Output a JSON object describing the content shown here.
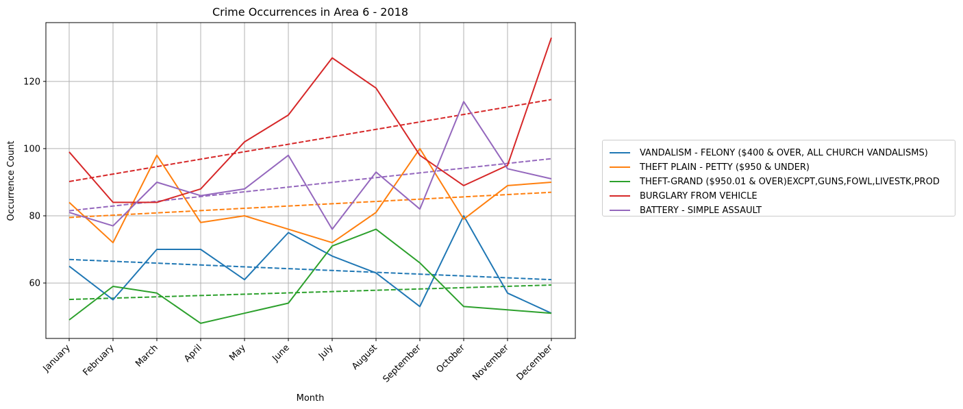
{
  "chart_data": {
    "type": "line",
    "title": "Crime Occurrences in Area 6 - 2018",
    "xlabel": "Month",
    "ylabel": "Occurrence Count",
    "categories": [
      "January",
      "February",
      "March",
      "April",
      "May",
      "June",
      "July",
      "August",
      "September",
      "October",
      "November",
      "December"
    ],
    "ylim": [
      43.5,
      137.5
    ],
    "yticks": [
      60,
      80,
      100,
      120
    ],
    "grid": true,
    "legend_position": "outside-right",
    "series": [
      {
        "name": "VANDALISM - FELONY ($400 & OVER, ALL CHURCH VANDALISMS)",
        "color": "#1f77b4",
        "values": [
          65,
          55,
          70,
          70,
          61,
          75,
          68,
          63,
          53,
          80,
          57,
          51
        ],
        "trend": [
          67.0,
          61.0
        ]
      },
      {
        "name": "THEFT PLAIN - PETTY ($950 & UNDER)",
        "color": "#ff7f0e",
        "values": [
          84,
          72,
          98,
          78,
          80,
          76,
          72,
          81,
          100,
          79,
          89,
          90
        ],
        "trend": [
          79.5,
          87.0
        ]
      },
      {
        "name": "THEFT-GRAND ($950.01 & OVER)EXCPT,GUNS,FOWL,LIVESTK,PROD",
        "color": "#2ca02c",
        "values": [
          49,
          59,
          57,
          48,
          51,
          54,
          71,
          76,
          66,
          53,
          52,
          51
        ],
        "trend": [
          55.1,
          59.4
        ]
      },
      {
        "name": "BURGLARY FROM VEHICLE",
        "color": "#d62728",
        "values": [
          99,
          84,
          84,
          88,
          102,
          110,
          127,
          118,
          98,
          89,
          95,
          133
        ],
        "trend": [
          90.2,
          114.6
        ]
      },
      {
        "name": "BATTERY - SIMPLE ASSAULT",
        "color": "#9467bd",
        "values": [
          81,
          77,
          90,
          86,
          88,
          98,
          76,
          93,
          82,
          114,
          94,
          91
        ],
        "trend": [
          81.5,
          97.0
        ]
      }
    ]
  }
}
